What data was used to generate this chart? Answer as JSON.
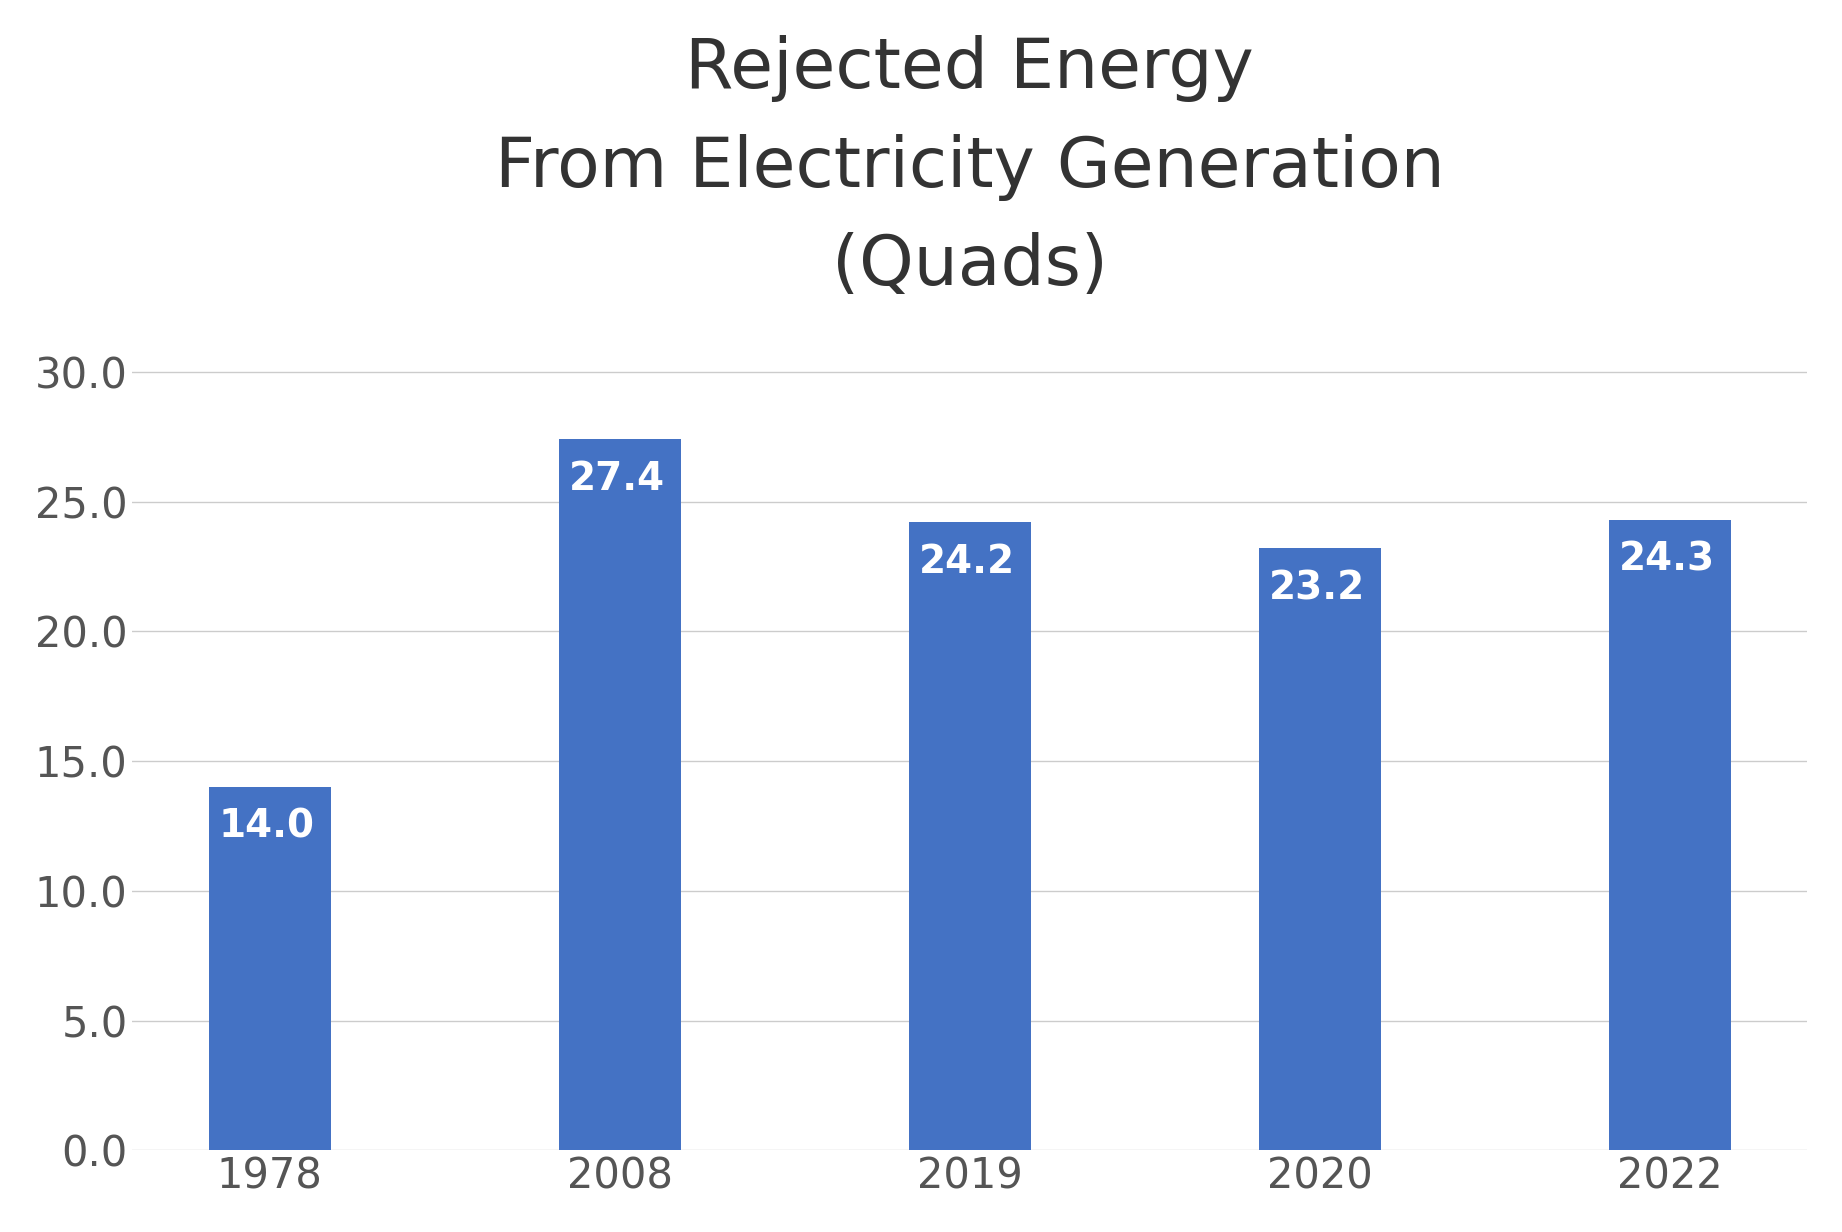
{
  "categories": [
    "1978",
    "2008",
    "2019",
    "2020",
    "2022"
  ],
  "values": [
    14.0,
    27.4,
    24.2,
    23.2,
    24.3
  ],
  "bar_color": "#4472C4",
  "title": "Rejected Energy\nFrom Electricity Generation\n(Quads)",
  "ylim": [
    0,
    32
  ],
  "yticks": [
    0.0,
    5.0,
    10.0,
    15.0,
    20.0,
    25.0,
    30.0
  ],
  "label_color": "#ffffff",
  "label_fontsize": 28,
  "title_fontsize": 50,
  "tick_fontsize": 30,
  "bar_width": 0.35,
  "grid_color": "#cccccc",
  "background_color": "#ffffff",
  "tick_color": "#555555",
  "title_color": "#333333"
}
